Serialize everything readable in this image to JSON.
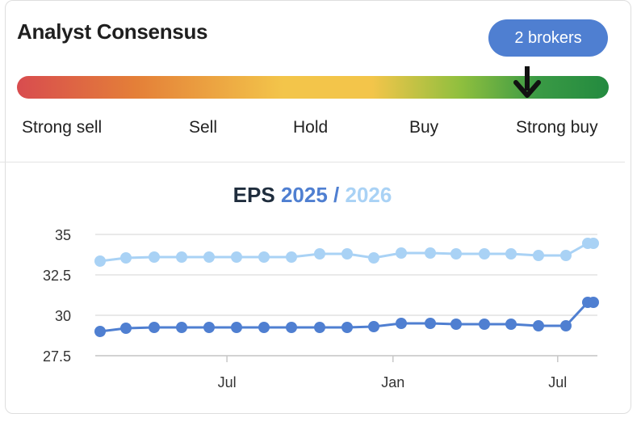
{
  "header": {
    "title": "Analyst Consensus",
    "badge": "2 brokers"
  },
  "consensus": {
    "scale": [
      "Strong sell",
      "Sell",
      "Hold",
      "Buy",
      "Strong buy"
    ],
    "position": 0.86,
    "colors": [
      "#d84c4f",
      "#e47f38",
      "#f3c54a",
      "#8fbf3e",
      "#238a3f"
    ]
  },
  "chart_title": {
    "eps": "EPS",
    "y1": "2025",
    "slash": "/",
    "y2": "2026"
  },
  "chart_data": {
    "type": "line",
    "title": "EPS 2025 / 2026",
    "xlabel": "",
    "ylabel": "",
    "ylim": [
      27.5,
      35.5
    ],
    "yticks": [
      27.5,
      30,
      32.5,
      35
    ],
    "ytick_labels": [
      "27.5",
      "30",
      "32.5",
      "35"
    ],
    "xtick_labels": [
      "Jul",
      "Jan",
      "Jul"
    ],
    "xtick_index": [
      4.65,
      10.7,
      16.7
    ],
    "grid": true,
    "x": [
      0,
      1,
      2,
      3,
      4,
      5,
      6,
      7,
      8,
      9,
      10,
      11,
      12,
      13,
      14,
      15,
      16,
      17,
      18,
      18.35
    ],
    "series": [
      {
        "name": "2025",
        "color": "#4f7fd1",
        "values": [
          29.0,
          29.2,
          29.25,
          29.25,
          29.25,
          29.25,
          29.25,
          29.25,
          29.25,
          29.25,
          29.3,
          29.5,
          29.5,
          29.45,
          29.45,
          29.45,
          29.35,
          29.35,
          30.8,
          30.8
        ]
      },
      {
        "name": "2026",
        "color": "#a9d2f5",
        "values": [
          33.35,
          33.55,
          33.6,
          33.6,
          33.6,
          33.6,
          33.6,
          33.6,
          33.8,
          33.8,
          33.55,
          33.85,
          33.85,
          33.8,
          33.8,
          33.8,
          33.7,
          33.7,
          34.45,
          34.45
        ]
      }
    ]
  }
}
